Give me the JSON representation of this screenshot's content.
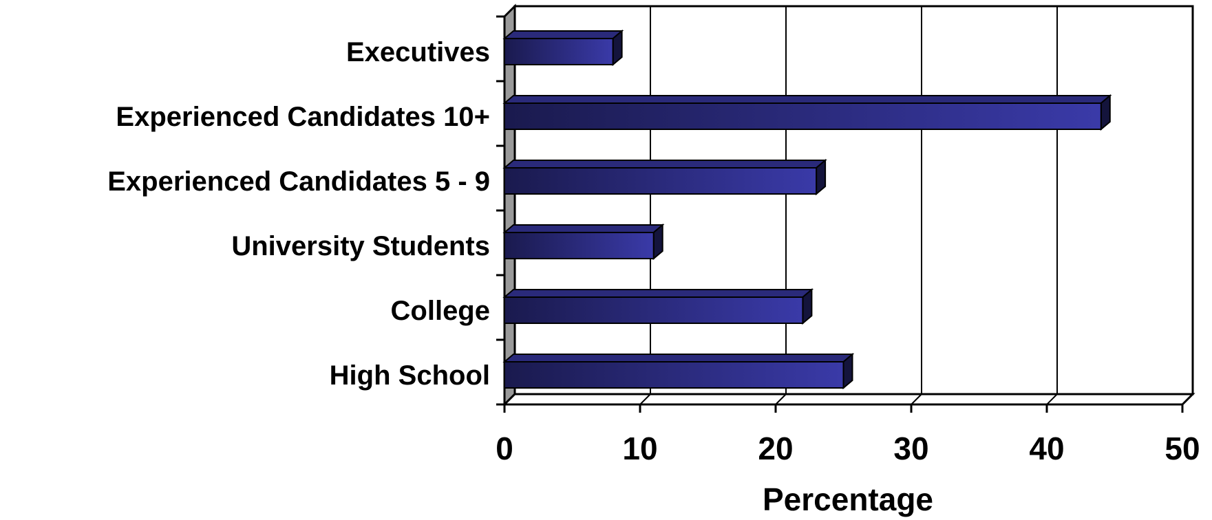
{
  "chart_data": {
    "type": "bar",
    "orientation": "horizontal",
    "style": "3d",
    "categories": [
      "Executives",
      "Experienced Candidates 10+",
      "Experienced Candidates 5 - 9",
      "University Students",
      "College",
      "High School"
    ],
    "values": [
      8,
      44,
      23,
      11,
      22,
      25
    ],
    "xlabel": "Percentage",
    "ylabel": "",
    "xlim": [
      0,
      50
    ],
    "xticks": [
      "0",
      "10",
      "20",
      "30",
      "40",
      "50"
    ],
    "grid": true,
    "legend": "none",
    "colors": {
      "bar_dark": "#1a1a4e",
      "bar_light": "#3a3aa8",
      "wall_side": "#9a9a9a",
      "grid": "#000000"
    }
  }
}
